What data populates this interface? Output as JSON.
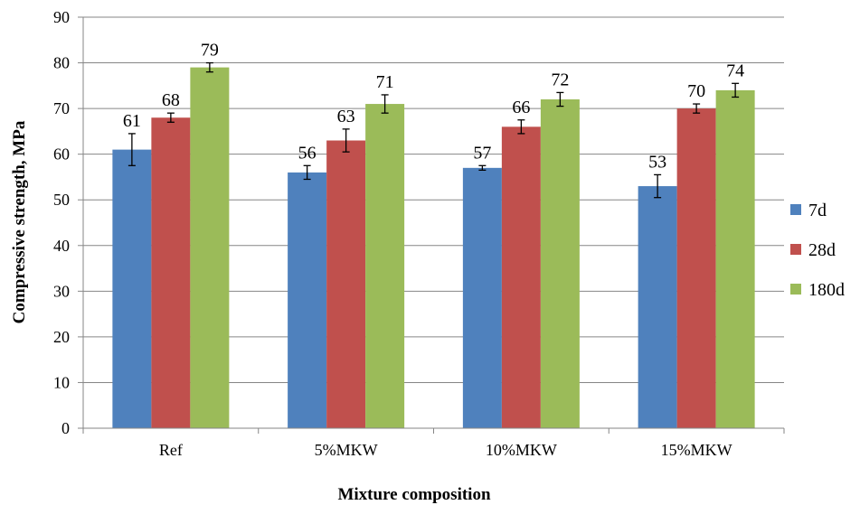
{
  "chart_data": {
    "type": "bar",
    "categories": [
      "Ref",
      "5%MKW",
      "10%MKW",
      "15%MKW"
    ],
    "series": [
      {
        "name": "7d",
        "values": [
          61,
          56,
          57,
          53
        ],
        "errors": [
          3.5,
          1.5,
          0.5,
          2.5
        ],
        "color": "#4F81BD"
      },
      {
        "name": "28d",
        "values": [
          68,
          63,
          66,
          70
        ],
        "errors": [
          1.0,
          2.5,
          1.5,
          1.0
        ],
        "color": "#C0504D"
      },
      {
        "name": "180d",
        "values": [
          79,
          71,
          72,
          74
        ],
        "errors": [
          1.0,
          2.0,
          1.5,
          1.5
        ],
        "color": "#9BBB59"
      }
    ],
    "data_labels": true,
    "xlabel": "Mixture composition",
    "ylabel": "Compressive strength, MPa",
    "ylim": [
      0,
      90
    ],
    "yticks": [
      0,
      10,
      20,
      30,
      40,
      50,
      60,
      70,
      80,
      90
    ],
    "grid": true,
    "legend_position": "right",
    "axis_color": "#868686",
    "grid_color": "#868686"
  }
}
